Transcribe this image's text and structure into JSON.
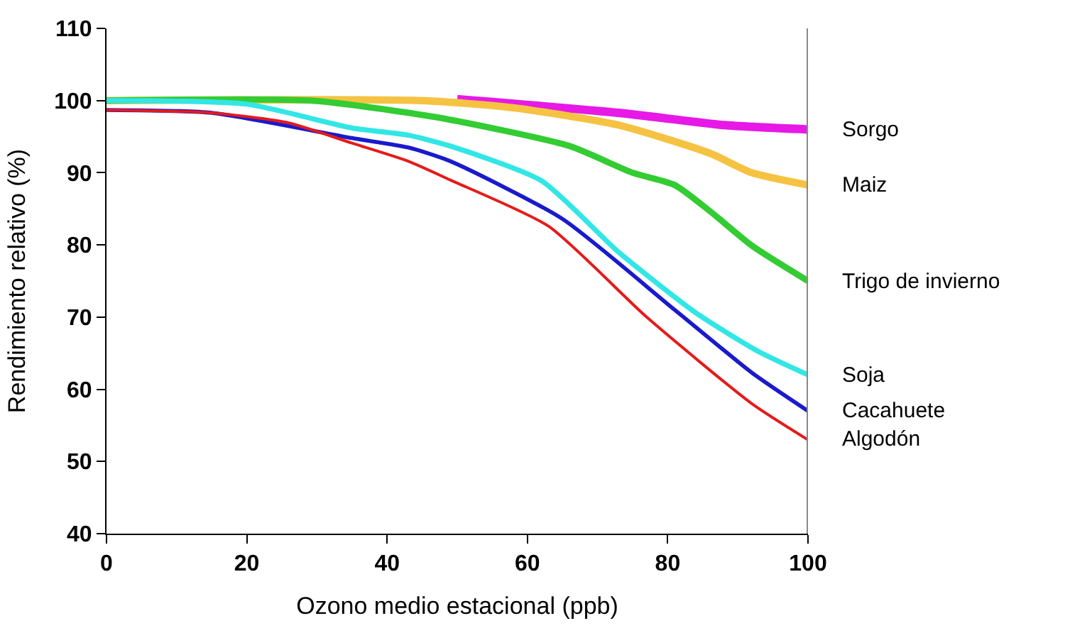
{
  "chart_data": {
    "type": "line",
    "xlabel": "Ozono medio estacional (ppb)",
    "ylabel": "Rendimiento relativo (%)",
    "xlim": [
      0,
      100
    ],
    "xticks": [
      0,
      20,
      40,
      60,
      80,
      100
    ],
    "ylim": [
      40,
      110
    ],
    "yticks": [
      40,
      50,
      60,
      70,
      80,
      90,
      100,
      110
    ],
    "legend": false,
    "marker": "none",
    "line_style": "solid",
    "series": [
      {
        "name": "Sorgo",
        "color": "#e619e6",
        "x": [
          50,
          73,
          88,
          100
        ],
        "values": [
          100.2,
          98.3,
          96.6,
          96
        ]
      },
      {
        "name": "Maiz",
        "color": "#f5c242",
        "x": [
          0,
          45,
          58,
          73,
          86,
          92,
          100
        ],
        "values": [
          100,
          100,
          99,
          96.6,
          92.7,
          90,
          88.3
        ]
      },
      {
        "name": "Trigo de invierno",
        "color": "#33cc33",
        "x": [
          0,
          29,
          47,
          66,
          75,
          81,
          86,
          92,
          100
        ],
        "values": [
          100,
          100,
          97.7,
          93.7,
          90,
          88.3,
          84.7,
          79.9,
          75
        ]
      },
      {
        "name": "Soja",
        "color": "#33e6e6",
        "x": [
          0,
          20,
          35,
          43,
          49,
          62,
          73,
          84,
          93,
          100
        ],
        "values": [
          100,
          99.5,
          96.2,
          95.2,
          93.7,
          88.9,
          79,
          70.6,
          65.2,
          62
        ]
      },
      {
        "name": "Cacahuete",
        "color": "#1a1acc",
        "x": [
          0,
          15,
          35,
          43,
          49,
          65,
          81,
          92,
          100
        ],
        "values": [
          98.7,
          98.3,
          94.8,
          93.5,
          91.6,
          83.6,
          71,
          62.3,
          57
        ]
      },
      {
        "name": "Algodón",
        "color": "#e61a1a",
        "x": [
          0,
          15,
          26,
          35,
          43,
          49,
          63,
          77,
          92,
          100
        ],
        "values": [
          98.7,
          98.3,
          96.9,
          94.1,
          91.6,
          89,
          82.6,
          70,
          58,
          53
        ]
      }
    ]
  }
}
